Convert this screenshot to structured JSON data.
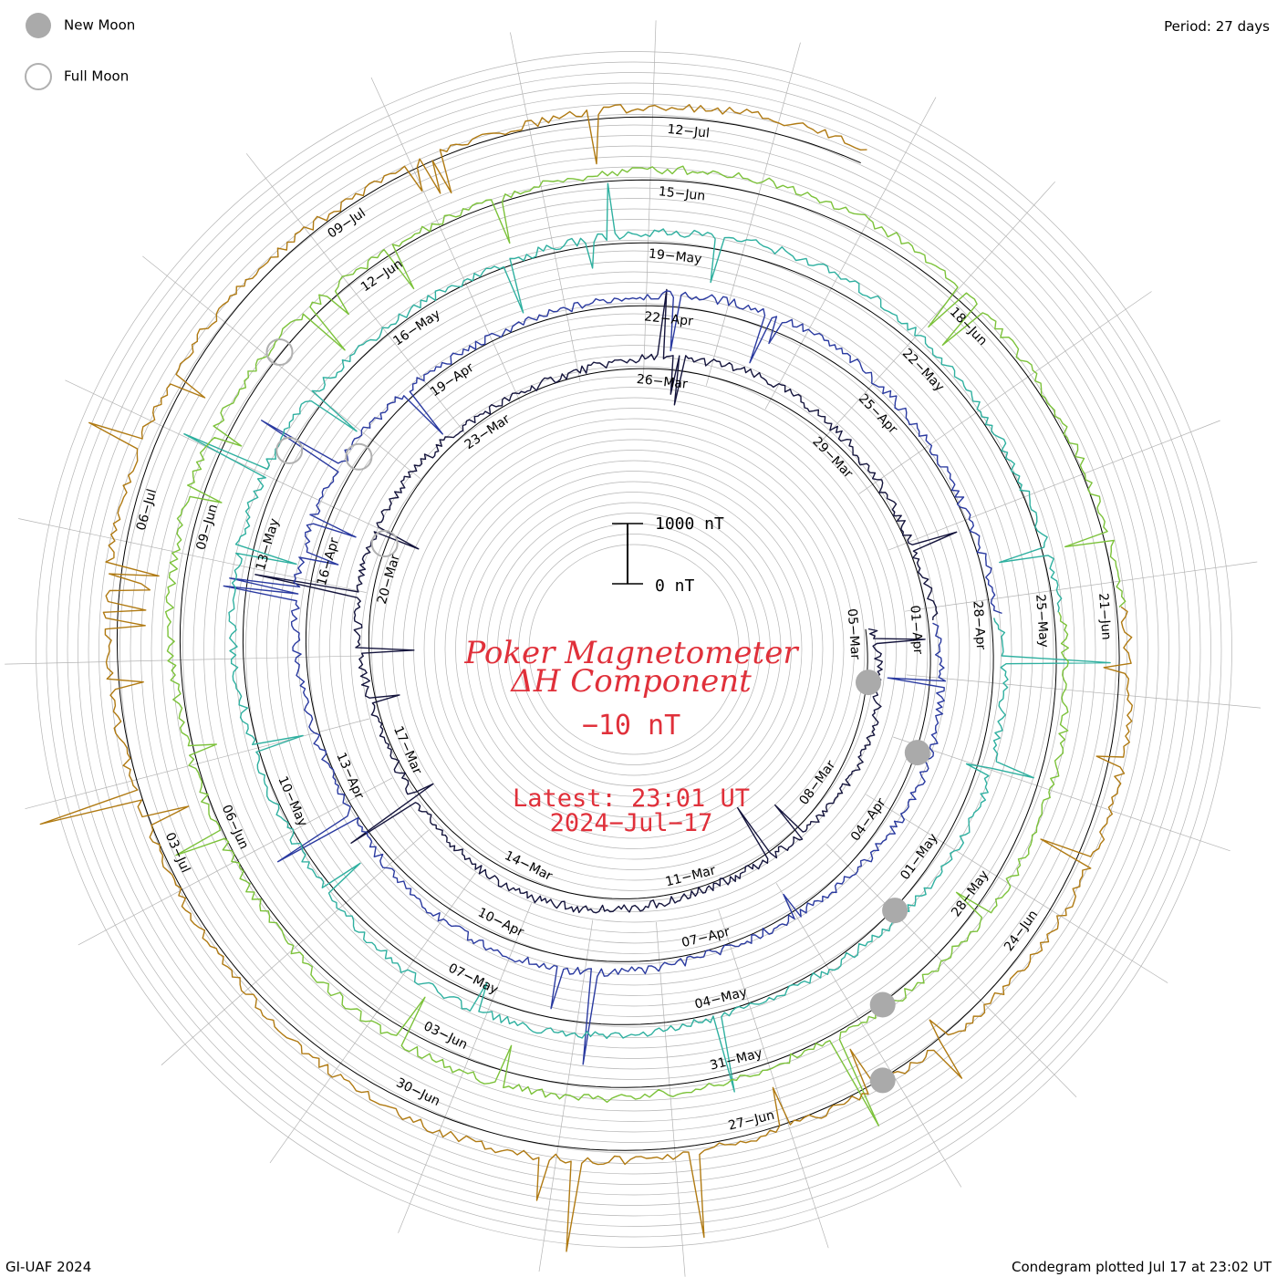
{
  "period_label": "Period: 27 days",
  "legend": {
    "new_moon": "New Moon",
    "full_moon": "Full Moon"
  },
  "footer": {
    "left": "GI-UAF 2024",
    "right": "Condegram plotted Jul 17 at 23:02 UT"
  },
  "chart_data": {
    "type": "line",
    "title_line1": "Poker Magnetometer",
    "title_line2": "ΔH Component",
    "current_value": "−10 nT",
    "latest_line1": "Latest: 23:01 UT",
    "latest_line2": "2024−Jul−17",
    "scale_bar": {
      "top_label": "1000 nT",
      "bottom_label": "0 nT"
    },
    "colors": {
      "ref_circle": "#000000",
      "grid": "#b4b4b4",
      "moon_new": "#aaaaaa",
      "moon_full": "#b0b0b0",
      "text_red": "#e0303a"
    },
    "series": [
      {
        "color": "#14143c",
        "labels": [
          "05−Mar",
          "08−Mar",
          "11−Mar",
          "14−Mar",
          "17−Mar",
          "20−Mar",
          "23−Mar",
          "26−Mar",
          "29−Mar"
        ]
      },
      {
        "color": "#2a3aa0",
        "labels": [
          "01−Apr",
          "04−Apr",
          "07−Apr",
          "10−Apr",
          "13−Apr",
          "16−Apr",
          "19−Apr",
          "22−Apr",
          "25−Apr"
        ]
      },
      {
        "color": "#2fb0a0",
        "labels": [
          "28−Apr",
          "01−May",
          "04−May",
          "07−May",
          "10−May",
          "13−May",
          "16−May",
          "19−May",
          "22−May"
        ]
      },
      {
        "color": "#7cc23a",
        "labels": [
          "25−May",
          "28−May",
          "31−May",
          "03−Jun",
          "06−Jun",
          "09−Jun",
          "12−Jun",
          "15−Jun",
          "18−Jun"
        ]
      },
      {
        "color": "#b07a12",
        "labels": [
          "21−Jun",
          "24−Jun",
          "27−Jun",
          "30−Jun",
          "03−Jul",
          "06−Jul",
          "09−Jul",
          "12−Jul"
        ]
      }
    ]
  }
}
